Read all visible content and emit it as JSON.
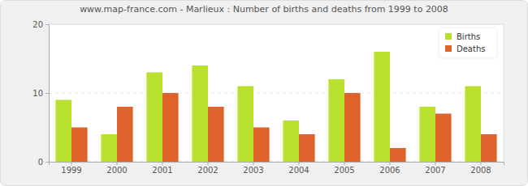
{
  "chart_data": {
    "type": "bar",
    "title": "www.map-france.com - Marlieux : Number of births and deaths from 1999 to 2008",
    "categories": [
      "1999",
      "2000",
      "2001",
      "2002",
      "2003",
      "2004",
      "2005",
      "2006",
      "2007",
      "2008"
    ],
    "series": [
      {
        "name": "Births",
        "color": "#b8e02c",
        "values": [
          9,
          4,
          13,
          14,
          11,
          6,
          12,
          16,
          8,
          11
        ]
      },
      {
        "name": "Deaths",
        "color": "#e0632e",
        "values": [
          5,
          8,
          10,
          8,
          5,
          4,
          10,
          2,
          7,
          4
        ]
      }
    ],
    "ylim": [
      0,
      20
    ],
    "yticks": [
      0,
      10,
      20
    ],
    "grid": true,
    "legend": "top-right"
  }
}
